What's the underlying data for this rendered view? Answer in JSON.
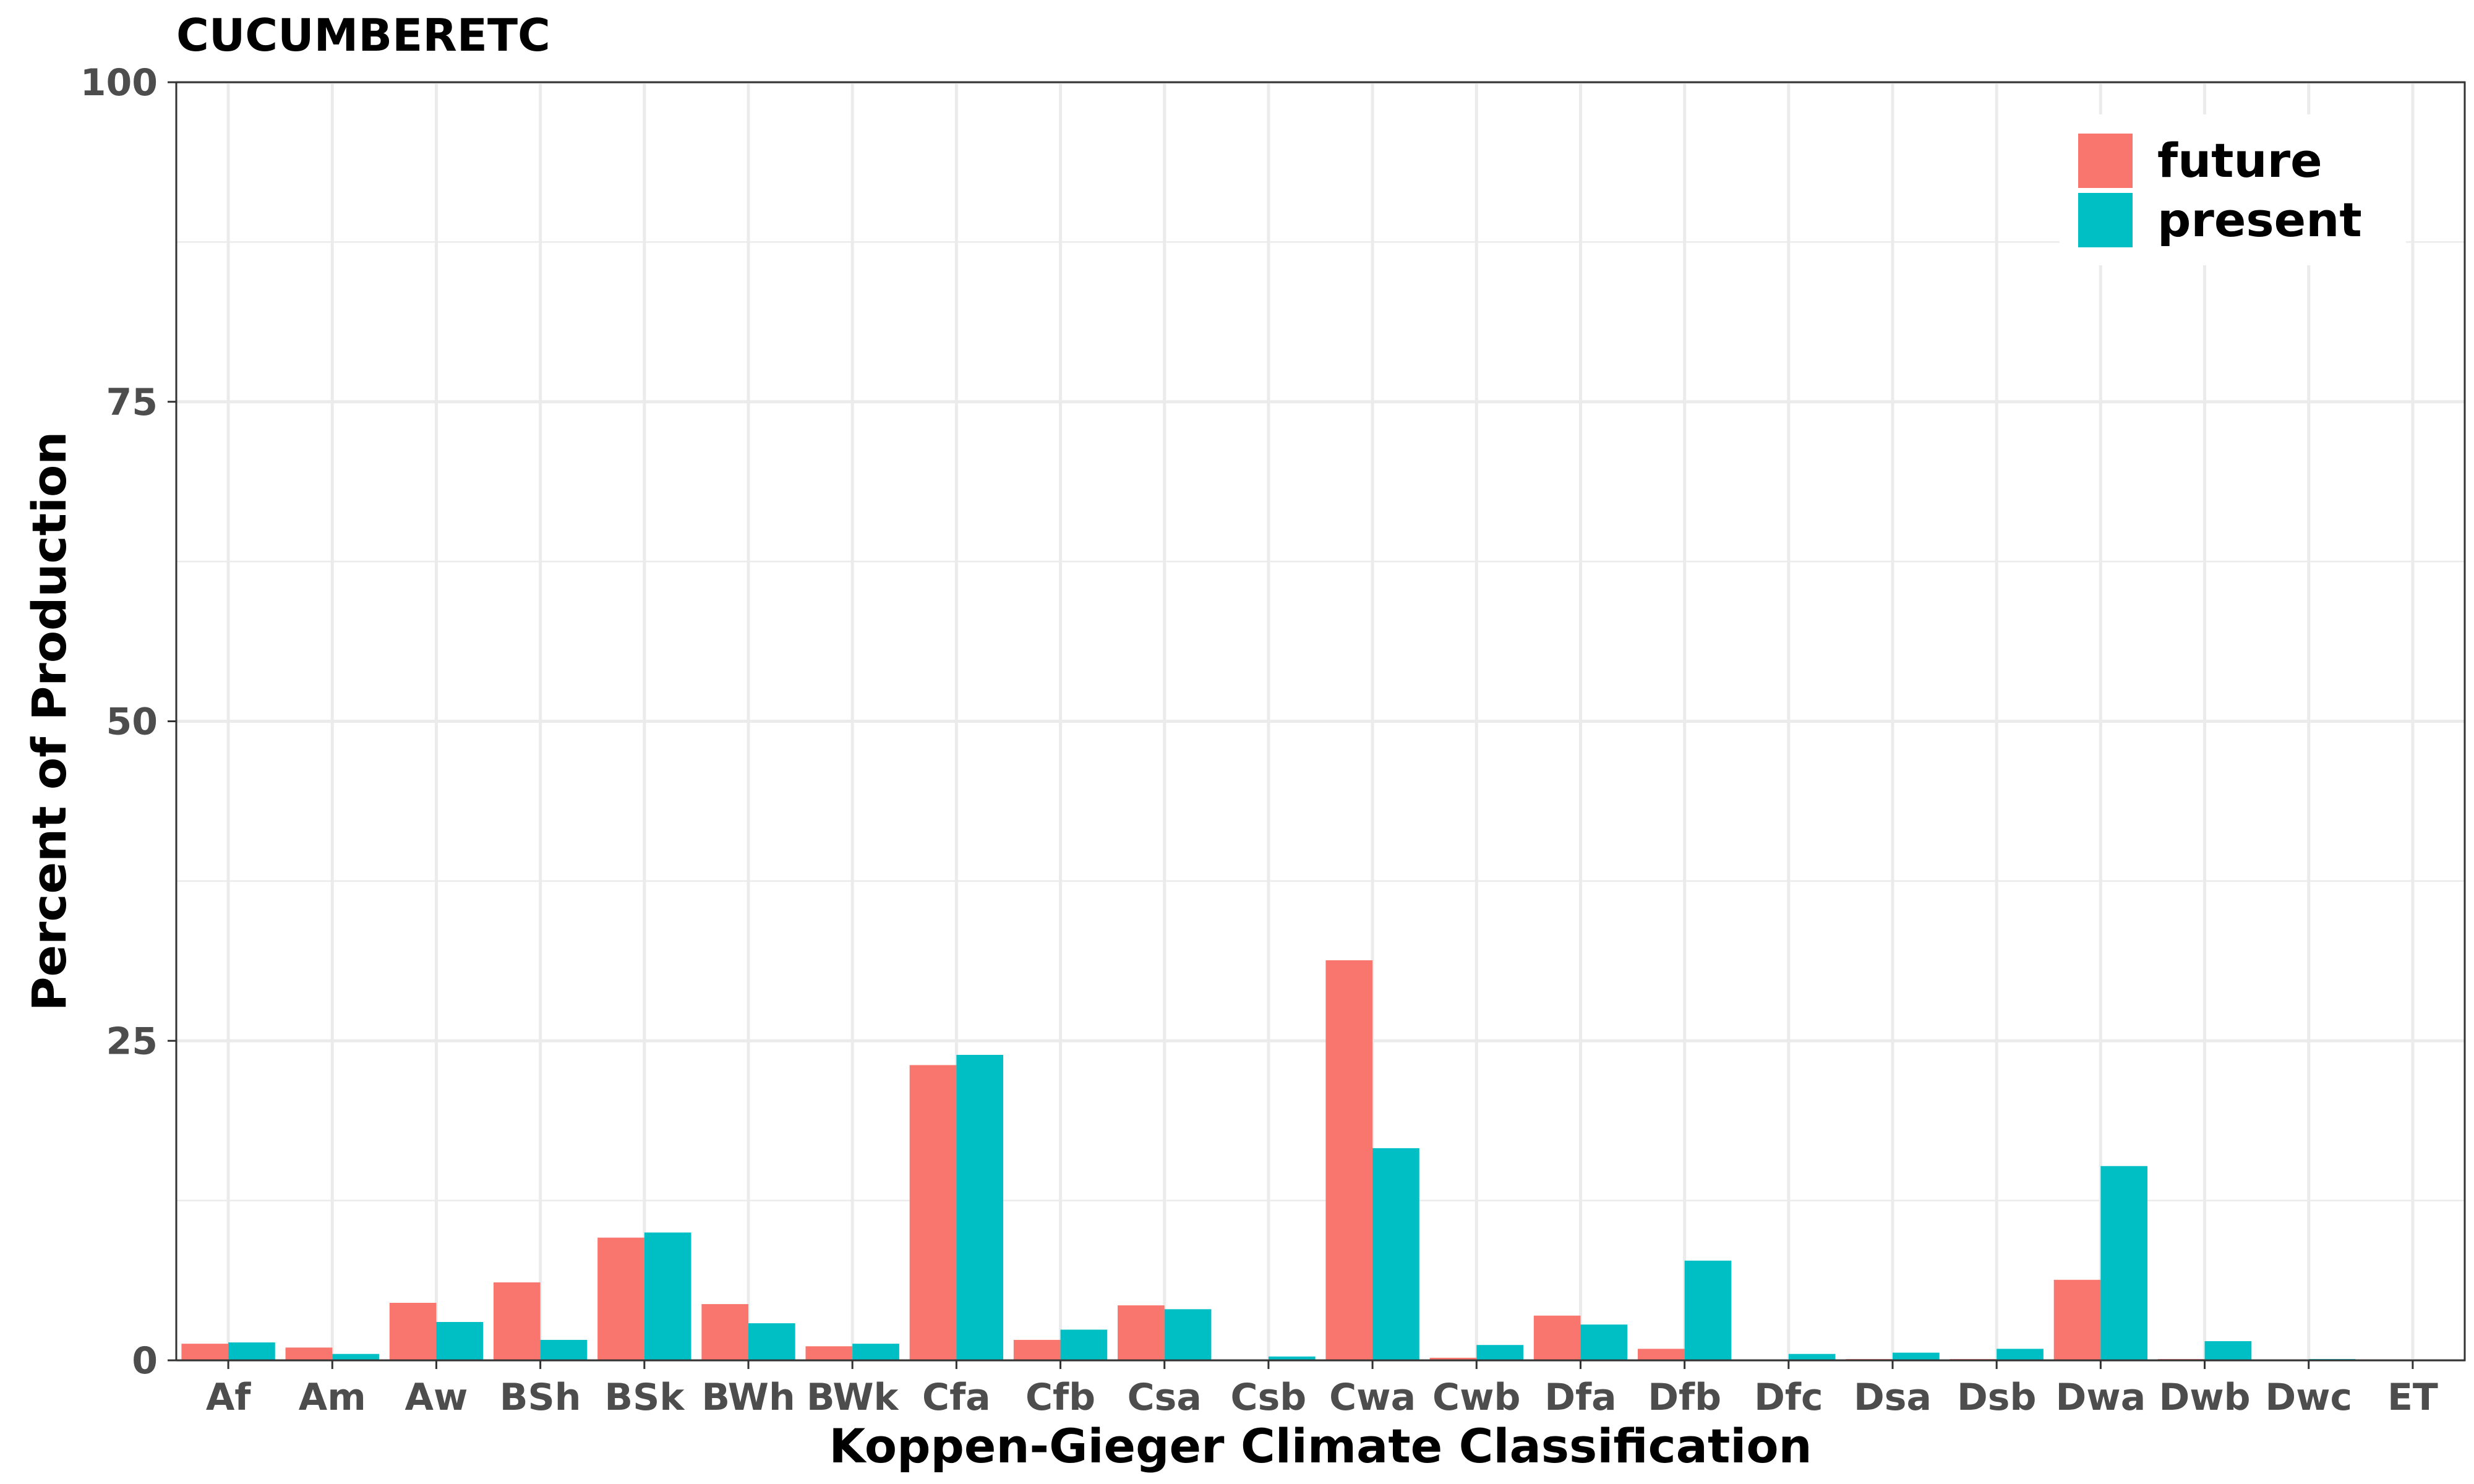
{
  "chart_data": {
    "type": "bar",
    "title": "CUCUMBERETC",
    "xlabel": "Koppen-Gieger Climate Classification",
    "ylabel": "Percent of Production",
    "ylim": [
      0,
      100
    ],
    "yticks": [
      "0",
      "25",
      "50",
      "75",
      "100"
    ],
    "grid": true,
    "legend_position": "top-right",
    "categories": [
      "Af",
      "Am",
      "Aw",
      "BSh",
      "BSk",
      "BWh",
      "BWk",
      "Cfa",
      "Cfb",
      "Csa",
      "Csb",
      "Cwa",
      "Cwb",
      "Dfa",
      "Dfb",
      "Dfc",
      "Dsa",
      "Dsb",
      "Dwa",
      "Dwb",
      "Dwc",
      "ET"
    ],
    "series": [
      {
        "name": "future",
        "color": "#F8766D",
        "values": [
          1.3,
          1.0,
          4.5,
          6.1,
          9.6,
          4.4,
          1.1,
          23.1,
          1.6,
          4.3,
          0.0,
          31.3,
          0.2,
          3.5,
          0.9,
          0.0,
          0.1,
          0.1,
          6.3,
          0.1,
          0.0,
          0.0
        ]
      },
      {
        "name": "present",
        "color": "#00BFC4",
        "values": [
          1.4,
          0.5,
          3.0,
          1.6,
          10.0,
          2.9,
          1.3,
          23.9,
          2.4,
          4.0,
          0.3,
          16.6,
          1.2,
          2.8,
          7.8,
          0.5,
          0.6,
          0.9,
          15.2,
          1.5,
          0.1,
          0.0
        ]
      }
    ]
  }
}
